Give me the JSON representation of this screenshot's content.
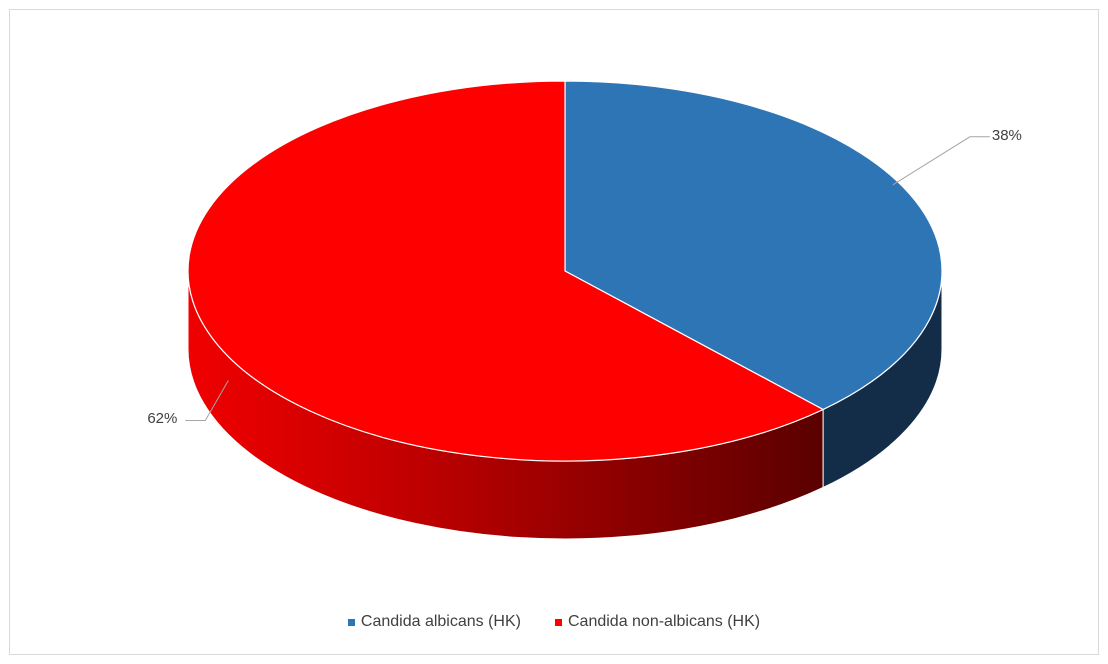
{
  "chart_data": {
    "type": "pie",
    "style": "3d",
    "title": "",
    "categories": [
      "Candida albicans (HK)",
      "Candida non-albicans (HK)"
    ],
    "values": [
      38,
      62
    ],
    "labels": [
      "38%",
      "62%"
    ],
    "colors": [
      "#2e75b6",
      "#ff0000"
    ],
    "side_colors": [
      "#132c48",
      "#8b0000"
    ],
    "legend_position": "bottom"
  }
}
